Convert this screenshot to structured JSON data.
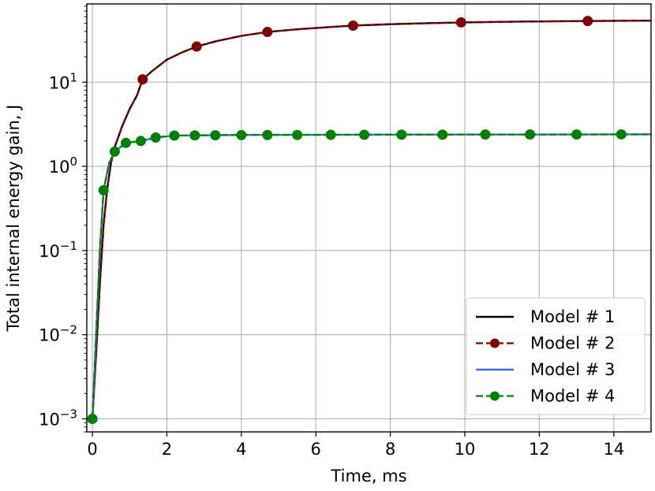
{
  "chart_data": {
    "type": "line",
    "xlabel": "Time, ms",
    "ylabel": "Total internal energy gain, J",
    "xlim": [
      -0.15,
      15
    ],
    "ylim": [
      0.0007,
      85
    ],
    "yscale": "log",
    "grid": true,
    "legend_position": "lower-right",
    "x_ticks": [
      0,
      2,
      4,
      6,
      8,
      10,
      12,
      14
    ],
    "x_tick_labels": [
      "0",
      "2",
      "4",
      "6",
      "8",
      "10",
      "12",
      "14"
    ],
    "y_ticks": [
      0.001,
      0.01,
      0.1,
      1,
      10
    ],
    "y_tick_labels": [
      {
        "base": "10",
        "exp": "−3"
      },
      {
        "base": "10",
        "exp": "−2"
      },
      {
        "base": "10",
        "exp": "−1"
      },
      {
        "base": "10",
        "exp": "0"
      },
      {
        "base": "10",
        "exp": "1"
      }
    ],
    "series": [
      {
        "name": "Model # 1",
        "color": "#000000",
        "dash": "solid",
        "marker": false,
        "x": [
          0,
          0.1,
          0.2,
          0.3,
          0.4,
          0.5,
          0.6,
          0.8,
          1.0,
          1.2,
          1.35,
          1.6,
          2.0,
          2.4,
          2.8,
          3.3,
          4.0,
          4.7,
          5.5,
          6.5,
          7.0,
          8.0,
          9.0,
          10.0,
          11.0,
          12.0,
          13.3,
          14.0,
          15.0
        ],
        "y": [
          0.001,
          0.006,
          0.04,
          0.2,
          0.55,
          1.1,
          1.7,
          3.0,
          4.8,
          7.0,
          10.8,
          13.5,
          18.5,
          22.5,
          26.5,
          30.5,
          35.5,
          39.5,
          42.5,
          45.5,
          47.0,
          48.8,
          50.2,
          51.3,
          52.1,
          52.7,
          53.3,
          53.5,
          53.8
        ]
      },
      {
        "name": "Model # 2",
        "color": "#800000",
        "dash": "dashed",
        "marker": true,
        "marker_x": [
          0,
          1.35,
          2.8,
          4.7,
          7.0,
          9.9,
          13.3
        ],
        "marker_y": [
          0.001,
          10.8,
          26.5,
          39.5,
          47.0,
          51.3,
          53.3
        ],
        "x": [
          0,
          0.1,
          0.2,
          0.3,
          0.4,
          0.5,
          0.6,
          0.8,
          1.0,
          1.2,
          1.35,
          1.6,
          2.0,
          2.4,
          2.8,
          3.3,
          4.0,
          4.7,
          5.5,
          6.5,
          7.0,
          8.0,
          9.0,
          10.0,
          11.0,
          12.0,
          13.3,
          14.0,
          15.0
        ],
        "y": [
          0.001,
          0.006,
          0.04,
          0.2,
          0.55,
          1.1,
          1.7,
          3.0,
          4.8,
          7.0,
          10.8,
          13.5,
          18.5,
          22.5,
          26.5,
          30.5,
          35.5,
          39.5,
          42.5,
          45.5,
          47.0,
          48.8,
          50.2,
          51.3,
          52.1,
          52.7,
          53.3,
          53.5,
          53.8
        ]
      },
      {
        "name": "Model # 3",
        "color": "#4169e1",
        "dash": "solid",
        "marker": false,
        "x": [
          0,
          0.1,
          0.2,
          0.3,
          0.45,
          0.6,
          0.9,
          1.3,
          1.7,
          2.2,
          3.0,
          4.0,
          6.0,
          8.0,
          10.0,
          12.0,
          15.0
        ],
        "y": [
          0.001,
          0.01,
          0.1,
          0.52,
          1.1,
          1.5,
          1.9,
          2.0,
          2.2,
          2.32,
          2.34,
          2.36,
          2.37,
          2.38,
          2.39,
          2.39,
          2.4
        ]
      },
      {
        "name": "Model # 4",
        "color": "#008000",
        "dash": "dashed",
        "marker": true,
        "marker_x": [
          0,
          0.3,
          0.6,
          0.9,
          1.3,
          1.7,
          2.2,
          2.75,
          3.3,
          4.0,
          4.7,
          5.5,
          6.4,
          7.3,
          8.3,
          9.4,
          10.55,
          11.75,
          13.0,
          14.2
        ],
        "marker_y": [
          0.001,
          0.52,
          1.5,
          1.9,
          2.0,
          2.2,
          2.32,
          2.33,
          2.34,
          2.35,
          2.36,
          2.36,
          2.37,
          2.37,
          2.38,
          2.38,
          2.39,
          2.39,
          2.39,
          2.4
        ],
        "x": [
          0,
          0.1,
          0.2,
          0.3,
          0.45,
          0.6,
          0.9,
          1.3,
          1.7,
          2.2,
          3.0,
          4.0,
          6.0,
          8.0,
          10.0,
          12.0,
          15.0
        ],
        "y": [
          0.001,
          0.01,
          0.1,
          0.52,
          1.1,
          1.5,
          1.9,
          2.0,
          2.2,
          2.32,
          2.34,
          2.36,
          2.37,
          2.38,
          2.39,
          2.39,
          2.4
        ]
      }
    ]
  }
}
